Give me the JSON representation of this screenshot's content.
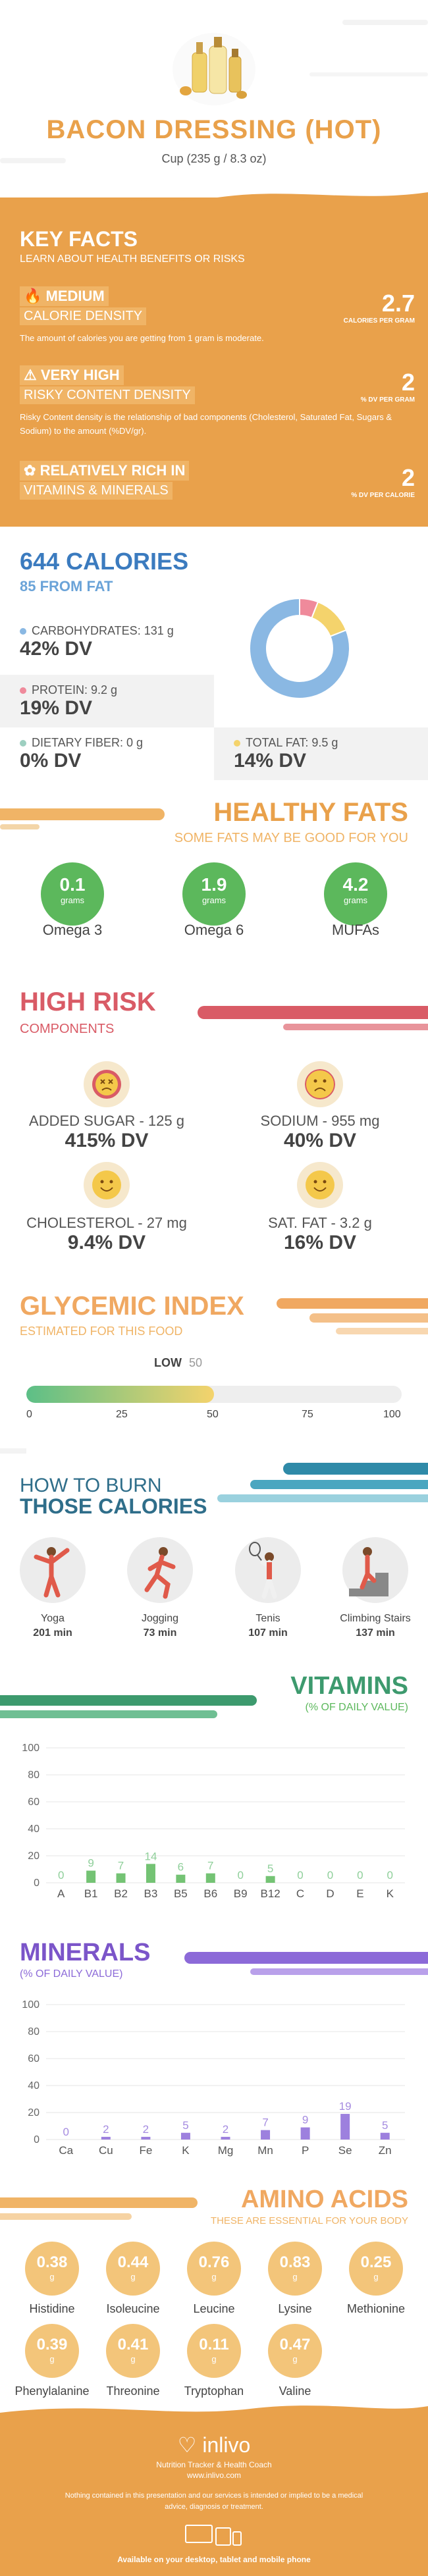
{
  "header": {
    "title": "BACON DRESSING (HOT)",
    "serving": "Cup (235 g / 8.3 oz)"
  },
  "key_facts": {
    "title": "KEY FACTS",
    "subtitle": "LEARN ABOUT HEALTH BENEFITS OR RISKS",
    "items": [
      {
        "level": "MEDIUM",
        "name": "CALORIE DENSITY",
        "desc": "The amount of calories you are getting from 1 gram is moderate.",
        "value": "2.7",
        "unit": "CALORIES PER GRAM"
      },
      {
        "level": "VERY HIGH",
        "name": "RISKY CONTENT DENSITY",
        "desc": "Risky Content density is the relationship of bad components (Cholesterol, Saturated Fat, Sugars & Sodium) to the amount (%DV/gr).",
        "value": "2",
        "unit": "% DV PER GRAM"
      },
      {
        "level": "RELATIVELY RICH IN",
        "name": "VITAMINS & MINERALS",
        "desc": "",
        "value": "2",
        "unit": "% DV PER CALORIE"
      }
    ]
  },
  "calories": {
    "title": "644 CALORIES",
    "subtitle": "85 FROM FAT",
    "macros": [
      {
        "label": "CARBOHYDRATES: 131 g",
        "dv": "42% DV",
        "color": "#8ab8e3"
      },
      {
        "label": "PROTEIN: 9.2 g",
        "dv": "19% DV",
        "color": "#ef8a9b"
      },
      {
        "label": "DIETARY FIBER: 0 g",
        "dv": "0% DV",
        "color": "#9dcfc0"
      },
      {
        "label": "TOTAL FAT: 9.5 g",
        "dv": "14% DV",
        "color": "#f4d36c"
      }
    ]
  },
  "chart_data": [
    {
      "type": "pie",
      "title": "",
      "categories": [
        "Carbohydrates",
        "Protein",
        "Fat"
      ],
      "values": [
        81,
        6,
        13
      ]
    },
    {
      "type": "bar",
      "title": "VITAMINS",
      "subtitle": "(% OF DAILY VALUE)",
      "categories": [
        "A",
        "B1",
        "B2",
        "B3",
        "B5",
        "B6",
        "B9",
        "B12",
        "C",
        "D",
        "E",
        "K"
      ],
      "values": [
        0,
        9,
        7,
        14,
        6,
        7,
        0,
        5,
        0,
        0,
        0,
        0
      ],
      "yticks": [
        0,
        20,
        40,
        60,
        80,
        100
      ],
      "ylim": [
        0,
        100
      ],
      "color": "#5cb85c"
    },
    {
      "type": "bar",
      "title": "MINERALS",
      "subtitle": "(% OF DAILY VALUE)",
      "categories": [
        "Ca",
        "Cu",
        "Fe",
        "K",
        "Mg",
        "Mn",
        "P",
        "Se",
        "Zn"
      ],
      "values": [
        0,
        2,
        2,
        5,
        2,
        7,
        9,
        19,
        5
      ],
      "yticks": [
        0,
        20,
        40,
        60,
        80,
        100
      ],
      "ylim": [
        0,
        100
      ],
      "color": "#8c6ad8"
    }
  ],
  "healthy_fats": {
    "title": "HEALTHY FATS",
    "subtitle": "SOME FATS MAY BE GOOD FOR YOU",
    "items": [
      {
        "value": "0.1",
        "unit": "grams",
        "name": "Omega 3"
      },
      {
        "value": "1.9",
        "unit": "grams",
        "name": "Omega 6"
      },
      {
        "value": "4.2",
        "unit": "grams",
        "name": "MUFAs"
      }
    ]
  },
  "high_risk": {
    "title": "HIGH RISK",
    "subtitle": "COMPONENTS",
    "items": [
      {
        "label": "ADDED SUGAR - 125 g",
        "dv": "415% DV",
        "face": "dizzy"
      },
      {
        "label": "SODIUM - 955 mg",
        "dv": "40% DV",
        "face": "sad"
      },
      {
        "label": "CHOLESTEROL - 27 mg",
        "dv": "9.4% DV",
        "face": "happy"
      },
      {
        "label": "SAT. FAT - 3.2 g",
        "dv": "16% DV",
        "face": "happy"
      }
    ]
  },
  "glycemic": {
    "title": "GLYCEMIC INDEX",
    "subtitle": "ESTIMATED FOR THIS FOOD",
    "level": "LOW",
    "value": 50,
    "value_label": "50",
    "ticks": [
      "0",
      "25",
      "50",
      "75",
      "100"
    ]
  },
  "burn": {
    "title_line1": "HOW TO BURN",
    "title_line2": "THOSE CALORIES",
    "activities": [
      {
        "name": "Yoga",
        "minutes": "201 min"
      },
      {
        "name": "Jogging",
        "minutes": "73 min"
      },
      {
        "name": "Tenis",
        "minutes": "107 min"
      },
      {
        "name": "Climbing Stairs",
        "minutes": "137 min"
      }
    ]
  },
  "amino": {
    "title": "AMINO ACIDS",
    "subtitle": "THESE ARE ESSENTIAL FOR YOUR BODY",
    "unit": "g",
    "items": [
      {
        "value": "0.38",
        "name": "Histidine"
      },
      {
        "value": "0.44",
        "name": "Isoleucine"
      },
      {
        "value": "0.76",
        "name": "Leucine"
      },
      {
        "value": "0.83",
        "name": "Lysine"
      },
      {
        "value": "0.25",
        "name": "Methionine"
      },
      {
        "value": "0.39",
        "name": "Phenylalanine"
      },
      {
        "value": "0.41",
        "name": "Threonine"
      },
      {
        "value": "0.11",
        "name": "Tryptophan"
      },
      {
        "value": "0.47",
        "name": "Valine"
      }
    ]
  },
  "footer": {
    "brand": "inlivo",
    "tagline": "Nutrition Tracker & Health Coach",
    "url": "www.inlivo.com",
    "disclaimer": "Nothing contained in this presentation and our services is intended or implied to be a medical advice, diagnosis or treatment.",
    "available": "Available on your desktop, tablet and mobile phone"
  },
  "colors": {
    "orange": "#e9a14b",
    "blue": "#3b7bbf",
    "green": "#5cb85c",
    "red": "#d95b66",
    "purple": "#8c6ad8",
    "teal": "#2f6e8a"
  }
}
